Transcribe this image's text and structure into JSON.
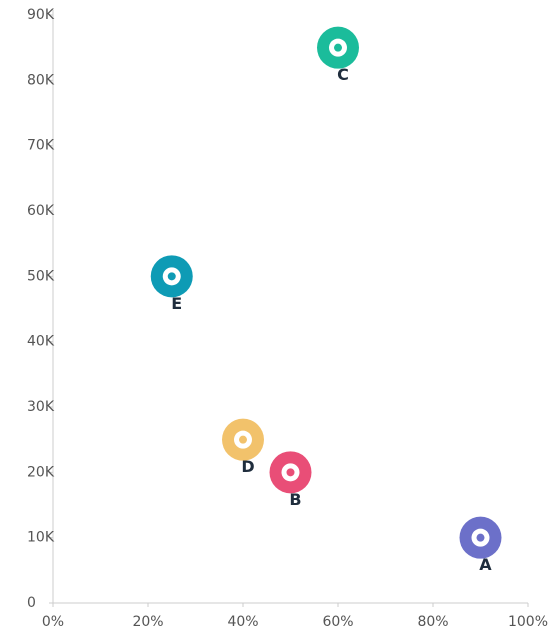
{
  "chart_data": {
    "type": "scatter",
    "x": [
      90,
      50,
      60,
      40,
      25
    ],
    "values": [
      10000,
      20000,
      85000,
      25000,
      50000
    ],
    "labels": [
      "A",
      "B",
      "C",
      "D",
      "E"
    ],
    "colors": [
      "#6c70c9",
      "#e94e77",
      "#1bbc9b",
      "#f2c26b",
      "#0e9bb5"
    ],
    "xlim": [
      0,
      100
    ],
    "xticks": [
      {
        "value": 0,
        "label": "0%"
      },
      {
        "value": 20,
        "label": "20%"
      },
      {
        "value": 40,
        "label": "40%"
      },
      {
        "value": 60,
        "label": "60%"
      },
      {
        "value": 80,
        "label": "80%"
      },
      {
        "value": 100,
        "label": "100%"
      }
    ],
    "ylim": [
      0,
      90000
    ],
    "yticks": [
      0,
      {
        "value": 10000,
        "label": "10K"
      },
      {
        "value": 20000,
        "label": "20K"
      },
      {
        "value": 30000,
        "label": "30K"
      },
      {
        "value": 40000,
        "label": "40K"
      },
      {
        "value": 50000,
        "label": "50K"
      },
      {
        "value": 60000,
        "label": "60K"
      },
      {
        "value": 70000,
        "label": "70K"
      },
      {
        "value": 80000,
        "label": "80K"
      },
      {
        "value": 90000,
        "label": "90K"
      }
    ]
  }
}
